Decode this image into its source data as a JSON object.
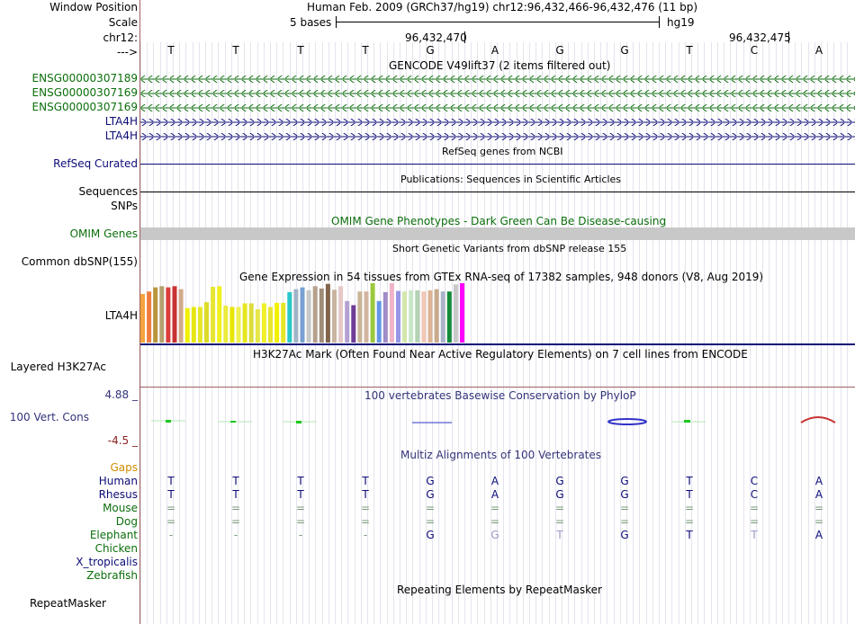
{
  "labels": {
    "window_position": "Window Position",
    "scale": "Scale",
    "chrom": "chr12:",
    "strand": "--->",
    "gene1": "ENSG00000307189",
    "gene2": "ENSG00000307169",
    "gene3": "ENSG00000307169",
    "gene4": "LTA4H",
    "gene5": "LTA4H",
    "refseq": "RefSeq Curated",
    "sequences": "Sequences",
    "snps": "SNPs",
    "omim": "OMIM Genes",
    "dbsnp": "Common dbSNP(155)",
    "gtex": "LTA4H",
    "h3k27ac": "Layered H3K27Ac",
    "phylop_max": "4.88 _",
    "phylop": "100 Vert. Cons",
    "phylop_min": "-4.5 _",
    "gaps": "Gaps",
    "species": [
      "Human",
      "Rhesus",
      "Mouse",
      "Dog",
      "Elephant",
      "Chicken",
      "X_tropicalis",
      "Zebrafish"
    ],
    "repeatmasker": "RepeatMasker"
  },
  "header": {
    "position": "Human Feb. 2009 (GRCh37/hg19)   chr12:96,432,466-96,432,476 (11 bp)",
    "scale_text": "5 bases",
    "assembly": "hg19",
    "coord1": "96,432,470",
    "coord2": "96,432,475"
  },
  "sequence": [
    "T",
    "T",
    "T",
    "T",
    "G",
    "A",
    "G",
    "G",
    "T",
    "C",
    "A"
  ],
  "titles": {
    "gencode": "GENCODE V49lift37 (2 items filtered out)",
    "refseq": "RefSeq genes from NCBI",
    "publications": "Publications: Sequences in Scientific Articles",
    "omim": "OMIM Gene Phenotypes - Dark Green Can Be Disease-causing",
    "dbsnp": "Short Genetic Variants from dbSNP release 155",
    "gtex": "Gene Expression in 54 tissues from GTEx RNA-seq of 17382 samples, 948 donors (V8, Aug 2019)",
    "h3k27ac": "H3K27Ac Mark (Often Found Near Active Regulatory Elements) on 7 cell lines from ENCODE",
    "phylop": "100 vertebrates Basewise Conservation by PhyloP",
    "multiz": "Multiz Alignments of 100 Vertebrates",
    "repeatmasker": "Repeating Elements by RepeatMasker"
  },
  "alignment": {
    "Human": [
      "T",
      "T",
      "T",
      "T",
      "G",
      "A",
      "G",
      "G",
      "T",
      "C",
      "A"
    ],
    "Rhesus": [
      "T",
      "T",
      "T",
      "T",
      "G",
      "A",
      "G",
      "G",
      "T",
      "C",
      "A"
    ],
    "Mouse": [
      "=",
      "=",
      "=",
      "=",
      "=",
      "=",
      "=",
      "=",
      "=",
      "=",
      "="
    ],
    "Dog": [
      "=",
      "=",
      "=",
      "=",
      "=",
      "=",
      "=",
      "=",
      "=",
      "=",
      "="
    ],
    "Elephant": [
      "-",
      "-",
      "-",
      "-",
      "G",
      "G",
      "T",
      "G",
      "T",
      "T",
      "A"
    ]
  },
  "elephant_mismatch": [
    false,
    false,
    false,
    false,
    false,
    true,
    true,
    false,
    false,
    true,
    false
  ],
  "gtex_colors": [
    "#f5a33c",
    "#f07d3c",
    "#b8963c",
    "#b4a06e",
    "#dc3c3c",
    "#c83232",
    "#d2aa8c",
    "#f0f000",
    "#e6e614",
    "#e6e628",
    "#dcdc28",
    "#e6e632",
    "#f0f01e",
    "#ebeb3c",
    "#e6e600",
    "#f0f050",
    "#e6e61e",
    "#dcdc3c",
    "#e6e646",
    "#f0f028",
    "#e6e632",
    "#f0f000",
    "#e6e628",
    "#28c8c8",
    "#a0b4c8",
    "#78a0d2",
    "#c8c8c8",
    "#b4a08c",
    "#a08c78",
    "#82644b",
    "#c8b4a0",
    "#e6c8c8",
    "#b4a0d2",
    "#6e3c96",
    "#c8b496",
    "#d2b4a0",
    "#9bc83c",
    "#6496e6",
    "#a08cc8",
    "#f0b4c8",
    "#9696e6",
    "#d2e6aa",
    "#c8e6c8",
    "#b4d2b4",
    "#f0c8b4",
    "#dcb496",
    "#c8aa8c",
    "#aab4c8",
    "#148c3c",
    "#c8c8c8",
    "#ff00ff"
  ],
  "gtex_values": [
    0.82,
    0.86,
    0.93,
    0.95,
    0.93,
    0.95,
    0.9,
    0.58,
    0.6,
    0.6,
    0.68,
    0.94,
    0.95,
    0.62,
    0.6,
    0.6,
    0.66,
    0.66,
    0.56,
    0.66,
    0.6,
    0.67,
    0.67,
    0.85,
    0.9,
    0.93,
    0.88,
    0.95,
    0.91,
    0.99,
    0.89,
    0.95,
    0.7,
    0.63,
    0.86,
    0.86,
    1.0,
    0.7,
    0.85,
    1.0,
    0.87,
    0.86,
    0.88,
    0.88,
    0.86,
    0.88,
    0.9,
    0.86,
    0.86,
    0.98,
    1.0
  ],
  "colors": {
    "green_label": "#0c6e0c",
    "navy": "#0c0c78",
    "gene_green": "#0c6e0c",
    "omim_bar": "#c8c8c8",
    "divider": "#a06060"
  }
}
